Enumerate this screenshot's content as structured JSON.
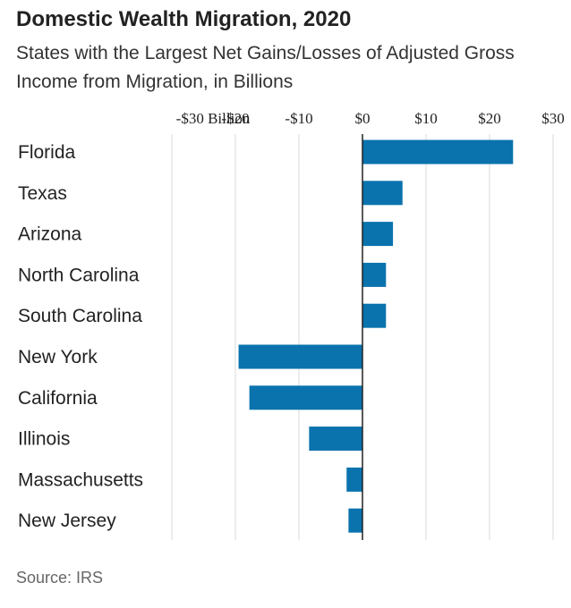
{
  "header": {
    "title": "Domestic Wealth Migration, 2020",
    "subtitle": "States with the Largest Net Gains/Losses of Adjusted Gross Income from Migration, in Billions"
  },
  "footer": {
    "source": "Source: IRS"
  },
  "chart_data": {
    "type": "bar",
    "orientation": "horizontal",
    "categories": [
      "Florida",
      "Texas",
      "Arizona",
      "North Carolina",
      "South Carolina",
      "New York",
      "California",
      "Illinois",
      "Massachusetts",
      "New Jersey"
    ],
    "values": [
      23.7,
      6.3,
      4.8,
      3.7,
      3.7,
      -19.5,
      -17.8,
      -8.4,
      -2.5,
      -2.2
    ],
    "xlim": [
      -30,
      30
    ],
    "xticks": [
      -30,
      -20,
      -10,
      0,
      10,
      20,
      30
    ],
    "xtick_labels": [
      "-$30 Billion",
      "-$20",
      "-$10",
      "$0",
      "$10",
      "$20",
      "$30"
    ],
    "bar_color": "#0a73ad",
    "grid": true,
    "gridline_color": "#d9d9d9",
    "axis_color": "#222222"
  }
}
